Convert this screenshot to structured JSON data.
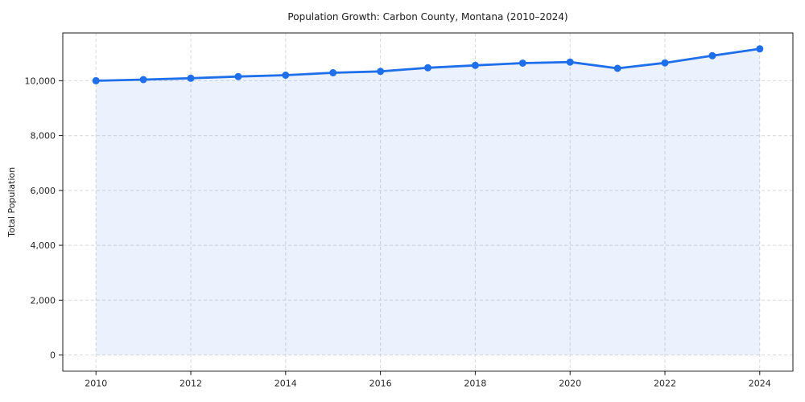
{
  "figure": {
    "background": "#ffffff"
  },
  "chart_data": {
    "type": "line",
    "title": "Population Growth: Carbon County, Montana (2010–2024)",
    "xlabel": "",
    "ylabel": "Total Population",
    "x": [
      2010,
      2011,
      2012,
      2013,
      2014,
      2015,
      2016,
      2017,
      2018,
      2019,
      2020,
      2021,
      2022,
      2023,
      2024
    ],
    "series": [
      {
        "name": "Total Population",
        "values": [
          10000,
          10040,
          10090,
          10150,
          10200,
          10290,
          10340,
          10470,
          10560,
          10640,
          10680,
          10450,
          10650,
          10910,
          11160
        ]
      }
    ],
    "xticks": {
      "values": [
        2010,
        2012,
        2014,
        2016,
        2018,
        2020,
        2022,
        2024
      ],
      "labels": [
        "2010",
        "2012",
        "2014",
        "2016",
        "2018",
        "2020",
        "2022",
        "2024"
      ]
    },
    "yticks": {
      "values": [
        0,
        2000,
        4000,
        6000,
        8000,
        10000
      ],
      "labels": [
        "0",
        "2,000",
        "4,000",
        "6,000",
        "8,000",
        "10,000"
      ]
    },
    "xlim": [
      2009.3,
      2024.7
    ],
    "ylim": [
      -585,
      11740
    ],
    "fill_baseline": 0,
    "grid": true,
    "legend": false,
    "style": {
      "line_color": "#1f6feb",
      "marker_color": "#1f6feb",
      "fill_color": "#1f6feb",
      "fill_opacity": 0.09,
      "line_width": 2.8,
      "marker_radius": 4.5,
      "grid_color": "#d9d9d9",
      "grid_dash": "4 3",
      "spine_color": "#1a1a1a",
      "tick_color": "#1a1a1a"
    }
  }
}
